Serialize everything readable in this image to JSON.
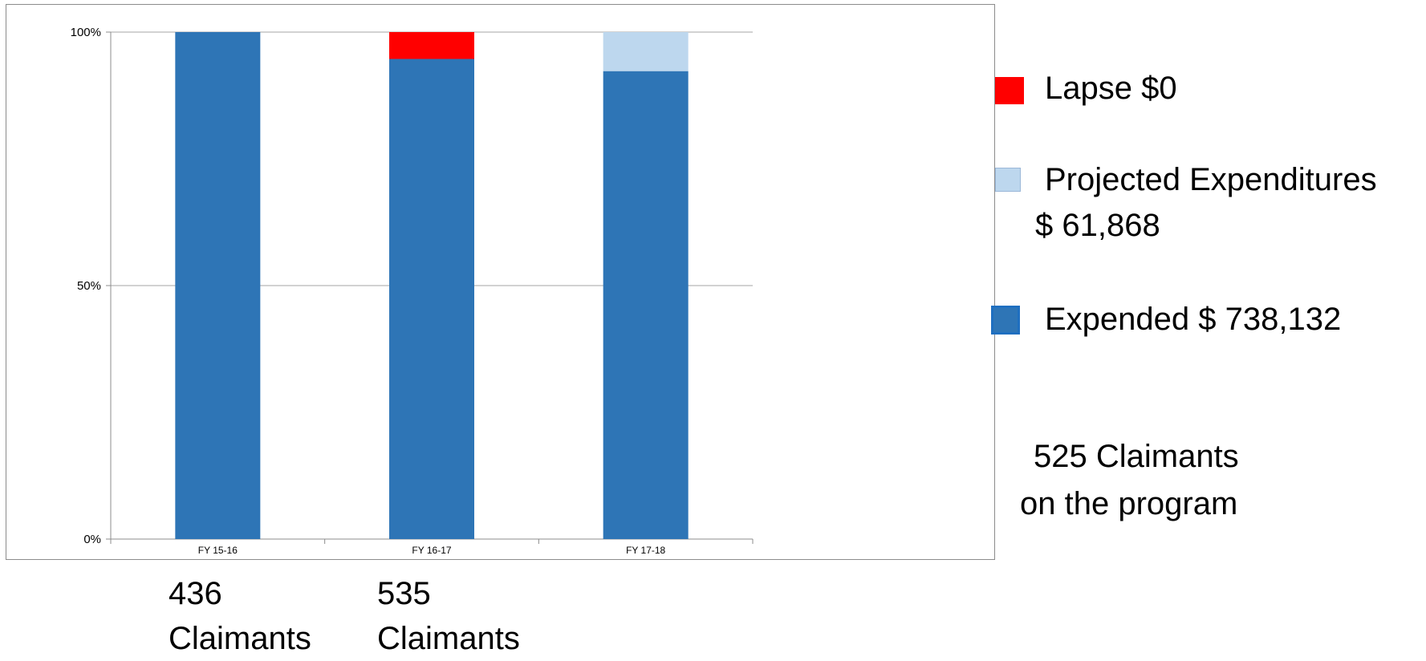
{
  "chart_data": {
    "type": "bar",
    "stacked": true,
    "percent_stacked": true,
    "categories": [
      "FY 15-16",
      "FY 16-17",
      "FY 17-18"
    ],
    "series": [
      {
        "name": "Expended $ 738,132",
        "color": "#2e75b6",
        "values": [
          100,
          94.7,
          92.3
        ]
      },
      {
        "name": "Projected Expenditures $ 61,868",
        "color": "#bdd7ee",
        "values": [
          0,
          0,
          7.7
        ]
      },
      {
        "name": "Lapse $0",
        "color": "#ff0000",
        "values": [
          0,
          5.3,
          0
        ]
      }
    ],
    "ylim": [
      0,
      100
    ],
    "y_ticks": [
      "0%",
      "50%",
      "100%"
    ],
    "grid": true,
    "legend_position": "right"
  },
  "legend": {
    "lapse": {
      "label": "Lapse $0",
      "color": "#ff0000"
    },
    "projected": {
      "label_line1": "Projected Expenditures",
      "label_line2": "$ 61,868",
      "color": "#bdd7ee"
    },
    "expended": {
      "label": "Expended $ 738,132",
      "color": "#2e75b6"
    }
  },
  "claimants_note": {
    "line1": "525 Claimants",
    "line2": "on the program"
  },
  "bottom_counts": [
    {
      "number": "436",
      "label": "Claimants"
    },
    {
      "number": "535",
      "label": "Claimants"
    }
  ]
}
